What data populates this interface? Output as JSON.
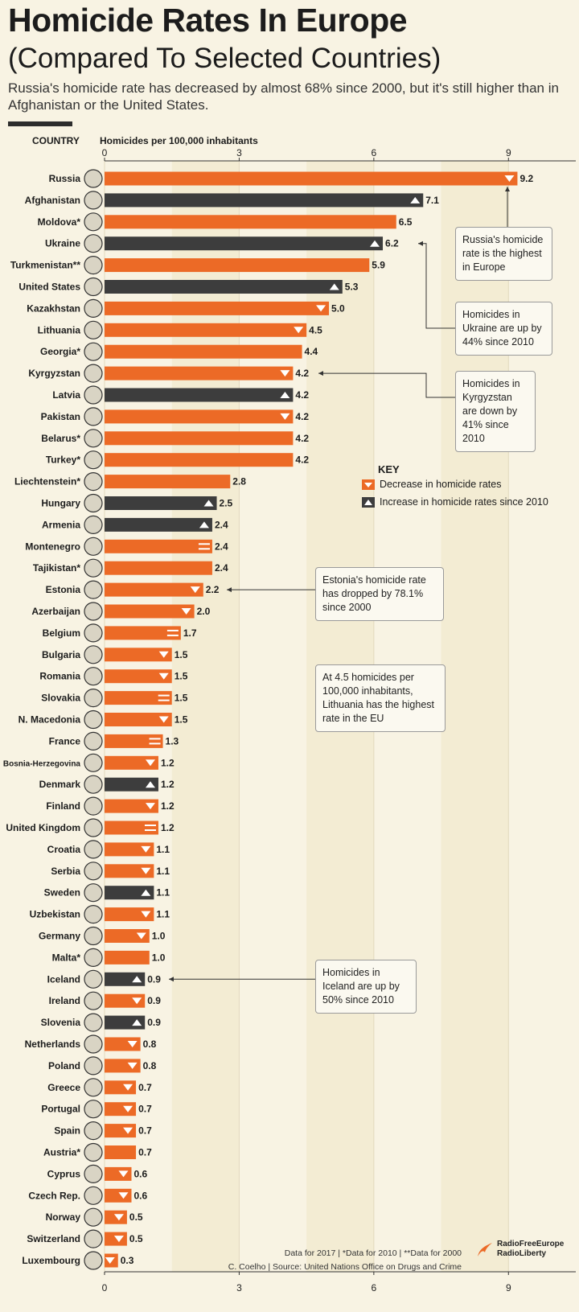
{
  "header": {
    "title": "Homicide Rates In Europe",
    "subtitle": "(Compared To Selected Countries)",
    "description": "Russia's homicide rate has decreased by almost 68% since 2000, but it's still higher than in Afghanistan or the United States."
  },
  "chart_data": {
    "type": "bar",
    "orientation": "horizontal",
    "category_header": "COUNTRY",
    "xlabel": "Homicides per 100,000 inhabitants",
    "xlim": [
      0,
      10.5
    ],
    "xticks": [
      0,
      3,
      6,
      9
    ],
    "grid": true,
    "colors": {
      "decrease": "#ec6a26",
      "increase": "#3d3d3d"
    },
    "bars": [
      {
        "country": "Russia",
        "value": 9.2,
        "label": "9.2",
        "color": "decrease",
        "marker": "down"
      },
      {
        "country": "Afghanistan",
        "value": 7.1,
        "label": "7.1",
        "color": "increase",
        "marker": "up"
      },
      {
        "country": "Moldova*",
        "value": 6.5,
        "label": "6.5",
        "color": "decrease",
        "marker": "none"
      },
      {
        "country": "Ukraine",
        "value": 6.2,
        "label": "6.2",
        "color": "increase",
        "marker": "up"
      },
      {
        "country": "Turkmenistan**",
        "value": 5.9,
        "label": "5.9",
        "color": "decrease",
        "marker": "none"
      },
      {
        "country": "United States",
        "value": 5.3,
        "label": "5.3",
        "color": "increase",
        "marker": "up"
      },
      {
        "country": "Kazakhstan",
        "value": 5.0,
        "label": "5.0",
        "color": "decrease",
        "marker": "down"
      },
      {
        "country": "Lithuania",
        "value": 4.5,
        "label": "4.5",
        "color": "decrease",
        "marker": "down"
      },
      {
        "country": "Georgia*",
        "value": 4.4,
        "label": "4.4",
        "color": "decrease",
        "marker": "none"
      },
      {
        "country": "Kyrgyzstan",
        "value": 4.2,
        "label": "4.2",
        "color": "decrease",
        "marker": "down"
      },
      {
        "country": "Latvia",
        "value": 4.2,
        "label": "4.2",
        "color": "increase",
        "marker": "up"
      },
      {
        "country": "Pakistan",
        "value": 4.2,
        "label": "4.2",
        "color": "decrease",
        "marker": "down"
      },
      {
        "country": "Belarus*",
        "value": 4.2,
        "label": "4.2",
        "color": "decrease",
        "marker": "none"
      },
      {
        "country": "Turkey*",
        "value": 4.2,
        "label": "4.2",
        "color": "decrease",
        "marker": "none"
      },
      {
        "country": "Liechtenstein*",
        "value": 2.8,
        "label": "2.8",
        "color": "decrease",
        "marker": "none"
      },
      {
        "country": "Hungary",
        "value": 2.5,
        "label": "2.5",
        "color": "increase",
        "marker": "up"
      },
      {
        "country": "Armenia",
        "value": 2.4,
        "label": "2.4",
        "color": "increase",
        "marker": "up"
      },
      {
        "country": "Montenegro",
        "value": 2.4,
        "label": "2.4",
        "color": "decrease",
        "marker": "equal"
      },
      {
        "country": "Tajikistan*",
        "value": 2.4,
        "label": "2.4",
        "color": "decrease",
        "marker": "none"
      },
      {
        "country": "Estonia",
        "value": 2.2,
        "label": "2.2",
        "color": "decrease",
        "marker": "down"
      },
      {
        "country": "Azerbaijan",
        "value": 2.0,
        "label": "2.0",
        "color": "decrease",
        "marker": "down"
      },
      {
        "country": "Belgium",
        "value": 1.7,
        "label": "1.7",
        "color": "decrease",
        "marker": "equal"
      },
      {
        "country": "Bulgaria",
        "value": 1.5,
        "label": "1.5",
        "color": "decrease",
        "marker": "down"
      },
      {
        "country": "Romania",
        "value": 1.5,
        "label": "1.5",
        "color": "decrease",
        "marker": "down"
      },
      {
        "country": "Slovakia",
        "value": 1.5,
        "label": "1.5",
        "color": "decrease",
        "marker": "equal"
      },
      {
        "country": "N. Macedonia",
        "value": 1.5,
        "label": "1.5",
        "color": "decrease",
        "marker": "down"
      },
      {
        "country": "France",
        "value": 1.3,
        "label": "1.3",
        "color": "decrease",
        "marker": "equal"
      },
      {
        "country": "Bosnia-Herzegovina",
        "value": 1.2,
        "label": "1.2",
        "color": "decrease",
        "marker": "down"
      },
      {
        "country": "Denmark",
        "value": 1.2,
        "label": "1.2",
        "color": "increase",
        "marker": "up"
      },
      {
        "country": "Finland",
        "value": 1.2,
        "label": "1.2",
        "color": "decrease",
        "marker": "down"
      },
      {
        "country": "United Kingdom",
        "value": 1.2,
        "label": "1.2",
        "color": "decrease",
        "marker": "equal"
      },
      {
        "country": "Croatia",
        "value": 1.1,
        "label": "1.1",
        "color": "decrease",
        "marker": "down"
      },
      {
        "country": "Serbia",
        "value": 1.1,
        "label": "1.1",
        "color": "decrease",
        "marker": "down"
      },
      {
        "country": "Sweden",
        "value": 1.1,
        "label": "1.1",
        "color": "increase",
        "marker": "up"
      },
      {
        "country": "Uzbekistan",
        "value": 1.1,
        "label": "1.1",
        "color": "decrease",
        "marker": "down"
      },
      {
        "country": "Germany",
        "value": 1.0,
        "label": "1.0",
        "color": "decrease",
        "marker": "down"
      },
      {
        "country": "Malta*",
        "value": 1.0,
        "label": "1.0",
        "color": "decrease",
        "marker": "none"
      },
      {
        "country": "Iceland",
        "value": 0.9,
        "label": "0.9",
        "color": "increase",
        "marker": "up"
      },
      {
        "country": "Ireland",
        "value": 0.9,
        "label": "0.9",
        "color": "decrease",
        "marker": "down"
      },
      {
        "country": "Slovenia",
        "value": 0.9,
        "label": "0.9",
        "color": "increase",
        "marker": "up"
      },
      {
        "country": "Netherlands",
        "value": 0.8,
        "label": "0.8",
        "color": "decrease",
        "marker": "down"
      },
      {
        "country": "Poland",
        "value": 0.8,
        "label": "0.8",
        "color": "decrease",
        "marker": "down"
      },
      {
        "country": "Greece",
        "value": 0.7,
        "label": "0.7",
        "color": "decrease",
        "marker": "down"
      },
      {
        "country": "Portugal",
        "value": 0.7,
        "label": "0.7",
        "color": "decrease",
        "marker": "down"
      },
      {
        "country": "Spain",
        "value": 0.7,
        "label": "0.7",
        "color": "decrease",
        "marker": "down"
      },
      {
        "country": "Austria*",
        "value": 0.7,
        "label": "0.7",
        "color": "decrease",
        "marker": "none"
      },
      {
        "country": "Cyprus",
        "value": 0.6,
        "label": "0.6",
        "color": "decrease",
        "marker": "down"
      },
      {
        "country": "Czech Rep.",
        "value": 0.6,
        "label": "0.6",
        "color": "decrease",
        "marker": "down"
      },
      {
        "country": "Norway",
        "value": 0.5,
        "label": "0.5",
        "color": "decrease",
        "marker": "down"
      },
      {
        "country": "Switzerland",
        "value": 0.5,
        "label": "0.5",
        "color": "decrease",
        "marker": "down"
      },
      {
        "country": "Luxembourg",
        "value": 0.3,
        "label": "0.3",
        "color": "decrease",
        "marker": "down"
      }
    ],
    "legend": {
      "title": "KEY",
      "placement": "right",
      "items": [
        {
          "label": "Decrease in homicide rates",
          "color": "decrease",
          "marker": "down"
        },
        {
          "label": "Increase in homicide rates since 2010",
          "color": "increase",
          "marker": "up"
        }
      ]
    },
    "annotations": [
      {
        "text": "Russia's homicide rate is the highest in Europe",
        "target": "Russia"
      },
      {
        "text": "Homicides in Ukraine are up by 44% since 2010",
        "target": "Ukraine"
      },
      {
        "text": "Homicides in Kyrgyzstan are down by 41% since 2010",
        "target": "Kyrgyzstan"
      },
      {
        "text": "Estonia's homicide rate has dropped by 78.1% since 2000",
        "target": "Estonia"
      },
      {
        "text": "At 4.5 homicides per 100,000 inhabitants, Lithuania has the highest rate in the EU",
        "target": "Lithuania"
      },
      {
        "text": "Homicides in Iceland are up by 50% since 2010",
        "target": "Iceland"
      }
    ]
  },
  "footer": {
    "note": "Data for 2017 | *Data for 2010 | **Data for 2000",
    "source": "C. Coelho | Source: United Nations Office on Drugs and Crime",
    "logo_line1": "RadioFreeEurope",
    "logo_line2": "RadioLiberty"
  }
}
